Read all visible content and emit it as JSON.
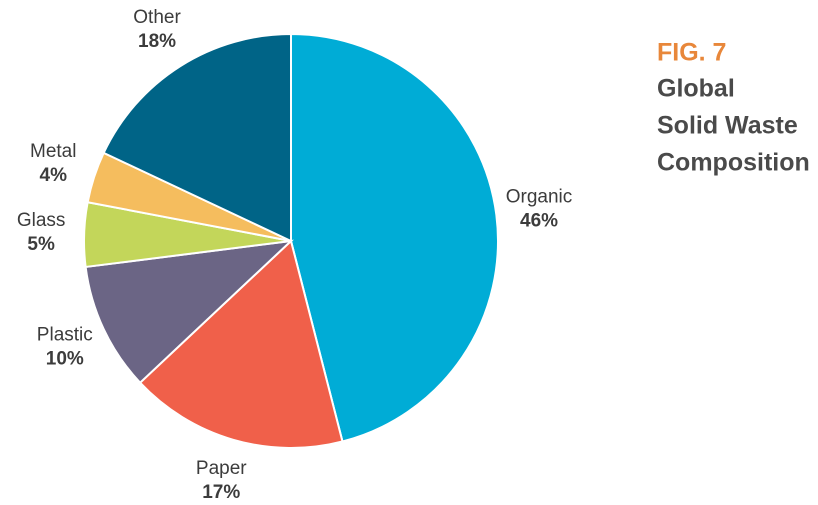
{
  "chart_data": {
    "type": "pie",
    "figure_label": "FIG. 7",
    "title": [
      "Global",
      "Solid Waste",
      "Composition"
    ],
    "categories": [
      "Organic",
      "Paper",
      "Plastic",
      "Glass",
      "Metal",
      "Other"
    ],
    "values": [
      46,
      17,
      10,
      5,
      4,
      18
    ],
    "value_labels": [
      "46%",
      "17%",
      "10%",
      "5%",
      "4%",
      "18%"
    ],
    "colors": [
      "#00acd6",
      "#f0604a",
      "#6b6585",
      "#c3d65a",
      "#f5bd5e",
      "#006487"
    ]
  }
}
